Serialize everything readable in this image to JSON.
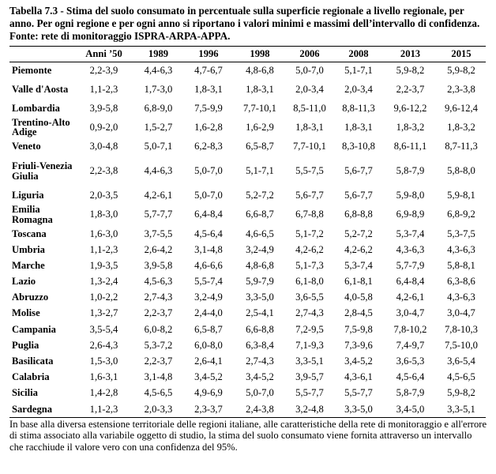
{
  "caption": "Tabella 7.3 - Stima del suolo consumato in percentuale sulla superficie regionale a livello regionale, per anno. Per ogni regione e per ogni anno si riportano i valori minimi e massimi dell’intervallo di confidenza. Fonte: rete di monitoraggio ISPRA-ARPA-APPA.",
  "headers": [
    "",
    "Anni ’50",
    "1989",
    "1996",
    "1998",
    "2006",
    "2008",
    "2013",
    "2015"
  ],
  "rows": [
    {
      "region": "Piemonte",
      "values": [
        "2,2-3,9",
        "4,4-6,3",
        "4,7-6,7",
        "4,8-6,8",
        "5,0-7,0",
        "5,1-7,1",
        "5,9-8,2",
        "5,9-8,2"
      ]
    },
    {
      "region": "Valle d'Aosta",
      "values": [
        "1,1-2,3",
        "1,7-3,0",
        "1,8-3,1",
        "1,8-3,1",
        "2,0-3,4",
        "2,0-3,4",
        "2,2-3,7",
        "2,3-3,8"
      ]
    },
    {
      "region": "Lombardia",
      "values": [
        "3,9-5,8",
        "6,8-9,0",
        "7,5-9,9",
        "7,7-10,1",
        "8,5-11,0",
        "8,8-11,3",
        "9,6-12,2",
        "9,6-12,4"
      ]
    },
    {
      "region": "Trentino-Alto Adige",
      "values": [
        "0,9-2,0",
        "1,5-2,7",
        "1,6-2,8",
        "1,6-2,9",
        "1,8-3,1",
        "1,8-3,1",
        "1,8-3,2",
        "1,8-3,2"
      ]
    },
    {
      "region": "Veneto",
      "values": [
        "3,0-4,8",
        "5,0-7,1",
        "6,2-8,3",
        "6,5-8,7",
        "7,7-10,1",
        "8,3-10,8",
        "8,6-11,1",
        "8,7-11,3"
      ]
    },
    {
      "region": "Friuli-Venezia Giulia",
      "values": [
        "2,2-3,8",
        "4,4-6,3",
        "5,0-7,0",
        "5,1-7,1",
        "5,5-7,5",
        "5,6-7,7",
        "5,8-7,9",
        "5,8-8,0"
      ]
    },
    {
      "region": "Liguria",
      "values": [
        "2,0-3,5",
        "4,2-6,1",
        "5,0-7,0",
        "5,2-7,2",
        "5,6-7,7",
        "5,6-7,7",
        "5,9-8,0",
        "5,9-8,1"
      ]
    },
    {
      "region": "Emilia Romagna",
      "values": [
        "1,8-3,0",
        "5,7-7,7",
        "6,4-8,4",
        "6,6-8,7",
        "6,7-8,8",
        "6,8-8,8",
        "6,9-8,9",
        "6,8-9,2"
      ]
    },
    {
      "region": "Toscana",
      "values": [
        "1,6-3,0",
        "3,7-5,5",
        "4,5-6,4",
        "4,6-6,5",
        "5,1-7,2",
        "5,2-7,2",
        "5,3-7,4",
        "5,3-7,5"
      ]
    },
    {
      "region": "Umbria",
      "values": [
        "1,1-2,3",
        "2,6-4,2",
        "3,1-4,8",
        "3,2-4,9",
        "4,2-6,2",
        "4,2-6,2",
        "4,3-6,3",
        "4,3-6,3"
      ]
    },
    {
      "region": "Marche",
      "values": [
        "1,9-3,5",
        "3,9-5,8",
        "4,6-6,6",
        "4,8-6,8",
        "5,1-7,3",
        "5,3-7,4",
        "5,7-7,9",
        "5,8-8,1"
      ]
    },
    {
      "region": "Lazio",
      "values": [
        "1,3-2,4",
        "4,5-6,3",
        "5,5-7,4",
        "5,9-7,9",
        "6,1-8,0",
        "6,1-8,1",
        "6,4-8,4",
        "6,3-8,6"
      ]
    },
    {
      "region": "Abruzzo",
      "values": [
        "1,0-2,2",
        "2,7-4,3",
        "3,2-4,9",
        "3,3-5,0",
        "3,6-5,5",
        "4,0-5,8",
        "4,2-6,1",
        "4,3-6,3"
      ]
    },
    {
      "region": "Molise",
      "values": [
        "1,3-2,7",
        "2,2-3,7",
        "2,4-4,0",
        "2,5-4,1",
        "2,7-4,3",
        "2,8-4,5",
        "3,0-4,7",
        "3,0-4,7"
      ]
    },
    {
      "region": "Campania",
      "values": [
        "3,5-5,4",
        "6,0-8,2",
        "6,5-8,7",
        "6,6-8,8",
        "7,2-9,5",
        "7,5-9,8",
        "7,8-10,2",
        "7,8-10,3"
      ]
    },
    {
      "region": "Puglia",
      "values": [
        "2,6-4,3",
        "5,3-7,2",
        "6,0-8,0",
        "6,3-8,4",
        "7,1-9,3",
        "7,3-9,6",
        "7,4-9,7",
        "7,5-10,0"
      ]
    },
    {
      "region": "Basilicata",
      "values": [
        "1,5-3,0",
        "2,2-3,7",
        "2,6-4,1",
        "2,7-4,3",
        "3,3-5,1",
        "3,4-5,2",
        "3,6-5,3",
        "3,6-5,4"
      ]
    },
    {
      "region": "Calabria",
      "values": [
        "1,6-3,1",
        "3,1-4,8",
        "3,4-5,2",
        "3,4-5,2",
        "3,9-5,7",
        "4,3-6,1",
        "4,5-6,4",
        "4,5-6,5"
      ]
    },
    {
      "region": "Sicilia",
      "values": [
        "1,4-2,8",
        "4,5-6,5",
        "4,9-6,9",
        "5,0-7,0",
        "5,5-7,7",
        "5,5-7,7",
        "5,8-7,9",
        "5,9-8,2"
      ]
    },
    {
      "region": "Sardegna",
      "values": [
        "1,1-2,3",
        "2,0-3,3",
        "2,3-3,7",
        "2,4-3,8",
        "3,2-4,8",
        "3,3-5,0",
        "3,4-5,0",
        "3,3-5,1"
      ]
    }
  ],
  "note": "In base alla diversa estensione territoriale delle regioni italiane, alle caratteristiche della rete di monitoraggio e all'errore di stima associato alla variabile oggetto di studio, la stima del suolo consumato viene fornita attraverso un intervallo che racchiude il valore vero con una confidenza del 95%."
}
